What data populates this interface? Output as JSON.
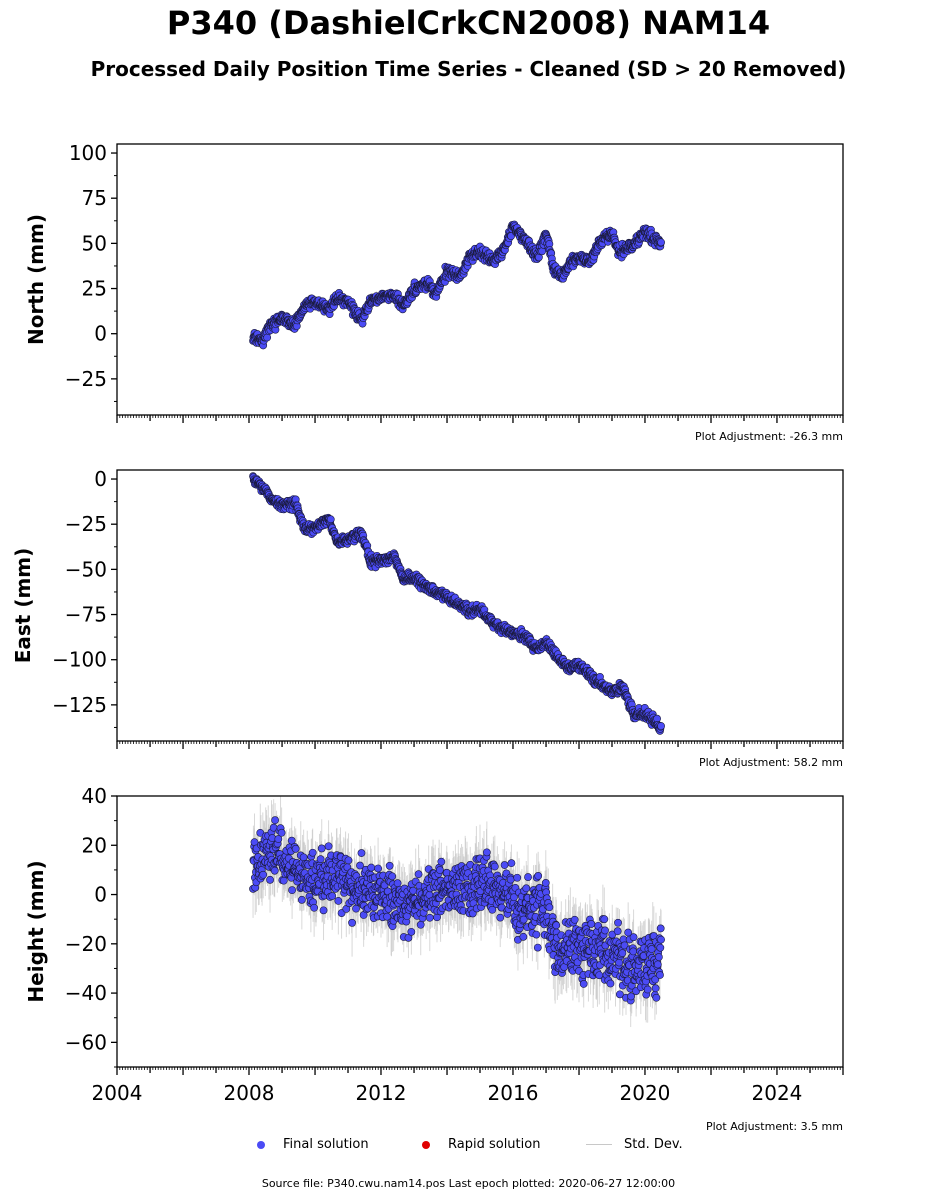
{
  "title": "P340 (DashielCrkCN2008) NAM14",
  "subtitle": "Processed Daily Position Time Series - Cleaned (SD > 20 Removed)",
  "colors": {
    "final": "#4b4bf5",
    "rapid": "#e00000",
    "stddev": "#c8c8c8"
  },
  "legend": [
    {
      "label": "Final solution",
      "marker": "dot",
      "color": "#4b4bf5"
    },
    {
      "label": "Rapid solution",
      "marker": "dot",
      "color": "#e00000"
    },
    {
      "label": "Std. Dev.",
      "marker": "line",
      "color": "#c8c8c8"
    }
  ],
  "source_note": "Source file: P340.cwu.nam14.pos  Last epoch plotted: 2020-06-27 12:00:00",
  "chart_data": [
    {
      "type": "scatter",
      "ylabel": "North (mm)",
      "xlim": [
        "2004-01-01",
        "2026-01-01"
      ],
      "ylim": [
        -45,
        105
      ],
      "yticks": [
        "100",
        "75",
        "50",
        "25",
        "0",
        "−25"
      ],
      "ytick_values": [
        100,
        75,
        50,
        25,
        0,
        -25
      ],
      "show_xtick_labels": false,
      "adjustment": "Plot Adjustment: -26.3 mm",
      "series": [
        {
          "name": "Final solution",
          "x": [
            "2008-02-15",
            "2008-06-01",
            "2008-09-01",
            "2009-01-01",
            "2009-06-01",
            "2009-09-01",
            "2010-01-01",
            "2010-06-01",
            "2010-09-01",
            "2011-01-01",
            "2011-06-01",
            "2011-09-01",
            "2012-01-01",
            "2012-06-01",
            "2012-09-01",
            "2013-01-01",
            "2013-06-01",
            "2013-09-01",
            "2014-01-01",
            "2014-06-01",
            "2014-09-01",
            "2015-01-01",
            "2015-06-01",
            "2015-10-01",
            "2016-01-01",
            "2016-06-01",
            "2016-10-01",
            "2017-01-01",
            "2017-04-01",
            "2017-07-01",
            "2017-10-01",
            "2018-01-01",
            "2018-05-01",
            "2018-09-01",
            "2019-01-01",
            "2019-04-01",
            "2019-08-01",
            "2020-01-01",
            "2020-06-27"
          ],
          "y": [
            -2,
            -3,
            5,
            8,
            5,
            15,
            18,
            13,
            20,
            17,
            8,
            18,
            20,
            22,
            15,
            25,
            28,
            22,
            35,
            32,
            42,
            45,
            40,
            47,
            60,
            50,
            43,
            55,
            35,
            32,
            40,
            42,
            40,
            52,
            55,
            45,
            48,
            56,
            50
          ],
          "spread": [
            3,
            4,
            4,
            4,
            3,
            3,
            3,
            4,
            3,
            3,
            4,
            3,
            3,
            3,
            4,
            3,
            3,
            4,
            3,
            3,
            3,
            3,
            4,
            3,
            3,
            4,
            4,
            3,
            4,
            3,
            3,
            3,
            3,
            3,
            4,
            4,
            3,
            4,
            3
          ]
        }
      ]
    },
    {
      "type": "scatter",
      "ylabel": "East (mm)",
      "xlim": [
        "2004-01-01",
        "2026-01-01"
      ],
      "ylim": [
        -145,
        5
      ],
      "yticks": [
        "0",
        "−25",
        "−50",
        "−75",
        "−100",
        "−125"
      ],
      "ytick_values": [
        0,
        -25,
        -50,
        -75,
        -100,
        -125
      ],
      "show_xtick_labels": false,
      "adjustment": "Plot Adjustment: 58.2 mm",
      "series": [
        {
          "name": "Final solution",
          "x": [
            "2008-02-15",
            "2008-06-01",
            "2008-10-01",
            "2009-01-01",
            "2009-06-01",
            "2009-09-01",
            "2010-01-01",
            "2010-06-01",
            "2010-09-01",
            "2011-01-01",
            "2011-06-01",
            "2011-09-01",
            "2012-01-01",
            "2012-06-01",
            "2012-09-01",
            "2013-01-01",
            "2013-06-01",
            "2013-09-01",
            "2014-01-01",
            "2014-06-01",
            "2014-09-01",
            "2015-01-01",
            "2015-06-01",
            "2015-09-01",
            "2016-01-01",
            "2016-06-01",
            "2016-10-01",
            "2017-01-01",
            "2017-06-01",
            "2017-09-01",
            "2018-01-01",
            "2018-06-01",
            "2018-10-01",
            "2019-01-01",
            "2019-05-01",
            "2019-09-01",
            "2020-01-01",
            "2020-06-27"
          ],
          "y": [
            0,
            -5,
            -12,
            -15,
            -13,
            -28,
            -27,
            -22,
            -35,
            -33,
            -31,
            -45,
            -45,
            -43,
            -55,
            -55,
            -60,
            -63,
            -65,
            -70,
            -73,
            -72,
            -80,
            -83,
            -85,
            -88,
            -95,
            -90,
            -100,
            -105,
            -103,
            -110,
            -115,
            -118,
            -115,
            -130,
            -130,
            -138
          ],
          "spread": [
            3,
            3,
            3,
            3,
            3,
            3,
            3,
            3,
            3,
            3,
            3,
            3,
            3,
            3,
            3,
            3,
            3,
            3,
            3,
            3,
            3,
            3,
            3,
            3,
            3,
            3,
            3,
            3,
            3,
            3,
            3,
            3,
            3,
            3,
            3,
            3,
            3,
            3
          ]
        }
      ]
    },
    {
      "type": "scatter",
      "ylabel": "Height (mm)",
      "xlim": [
        "2004-01-01",
        "2026-01-01"
      ],
      "ylim": [
        -70,
        40
      ],
      "yticks": [
        "40",
        "20",
        "0",
        "−20",
        "−40",
        "−60"
      ],
      "ytick_values": [
        40,
        20,
        0,
        -20,
        -40,
        -60
      ],
      "xticks": [
        "2004",
        "2008",
        "2012",
        "2016",
        "2020",
        "2024"
      ],
      "xtick_values": [
        "2004-01-01",
        "2008-01-01",
        "2012-01-01",
        "2016-01-01",
        "2020-01-01",
        "2024-01-01"
      ],
      "show_xtick_labels": true,
      "adjustment": "Plot Adjustment: 3.5 mm",
      "series": [
        {
          "name": "Final solution",
          "x": [
            "2008-02-15",
            "2008-09-01",
            "2009-06-01",
            "2010-01-01",
            "2010-09-01",
            "2011-06-01",
            "2012-01-01",
            "2012-09-01",
            "2013-06-01",
            "2014-01-01",
            "2014-09-01",
            "2015-06-01",
            "2016-01-01",
            "2016-06-01",
            "2017-01-01",
            "2017-06-01",
            "2018-01-01",
            "2018-06-01",
            "2019-01-01",
            "2019-06-01",
            "2020-01-01",
            "2020-06-27"
          ],
          "y": [
            12,
            18,
            10,
            5,
            8,
            2,
            0,
            -5,
            0,
            2,
            3,
            5,
            -5,
            -8,
            -5,
            -25,
            -20,
            -22,
            -25,
            -30,
            -28,
            -25
          ],
          "spread": [
            12,
            12,
            12,
            12,
            12,
            12,
            12,
            12,
            12,
            12,
            12,
            12,
            13,
            13,
            13,
            14,
            14,
            14,
            15,
            15,
            15,
            14
          ]
        }
      ]
    }
  ]
}
